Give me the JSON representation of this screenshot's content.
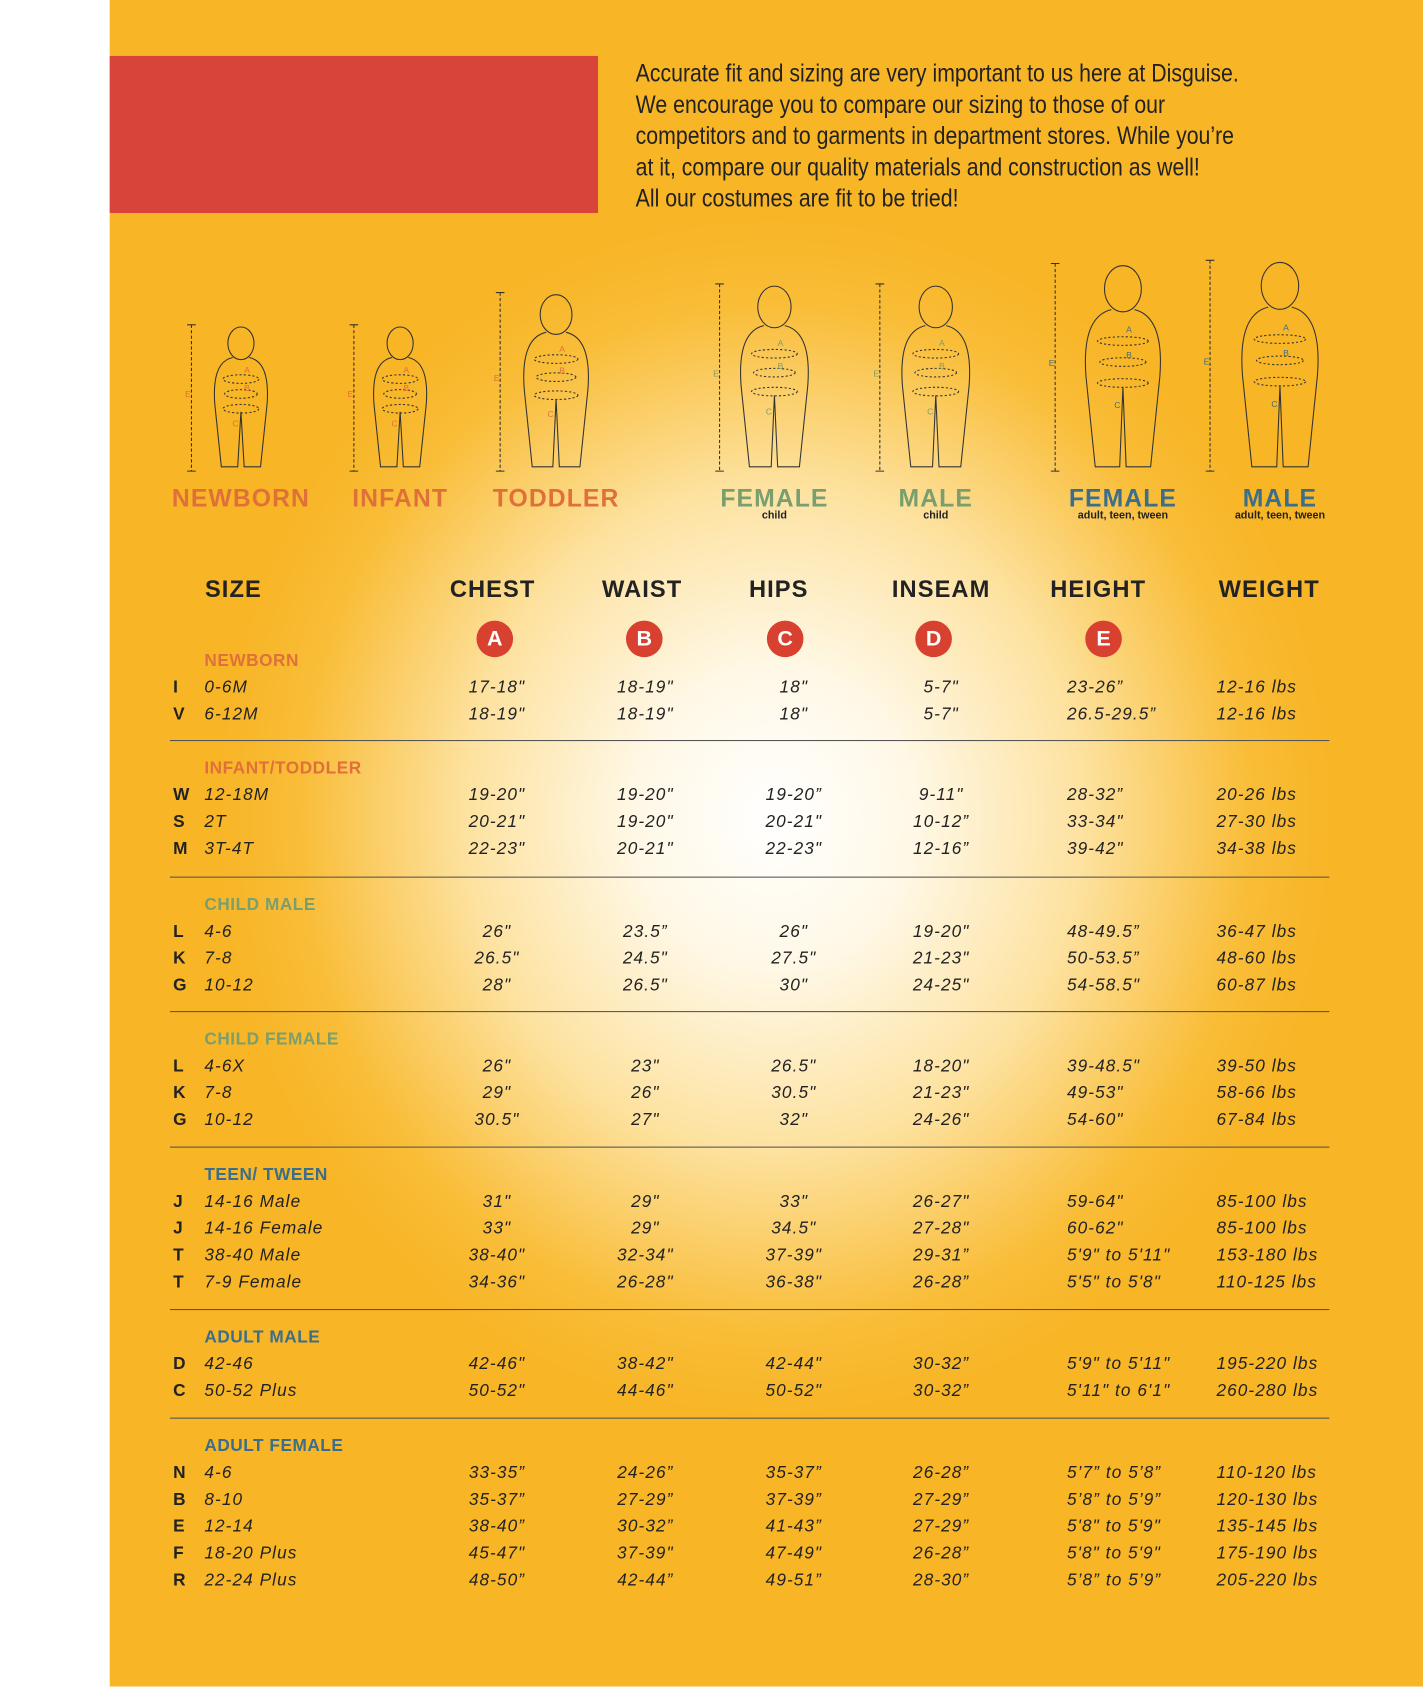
{
  "intro": "Accurate fit and sizing are very important to us here at Disguise.\nWe encourage you to compare our sizing to those of our\ncompetitors and to garments in department stores. While you’re\nat it, compare our quality materials and construction as well!\nAll our costumes are fit to be tried!",
  "colors": {
    "background": "#f8b526",
    "red_block": "#d8433a",
    "orange": "#e0703a",
    "green": "#7a9e6e",
    "blue": "#3a6e8a",
    "marker": "#d84030"
  },
  "figures": [
    {
      "label": "NEWBORN",
      "sub": "",
      "color": "orange"
    },
    {
      "label": "INFANT",
      "sub": "",
      "color": "orange"
    },
    {
      "label": "TODDLER",
      "sub": "",
      "color": "orange"
    },
    {
      "label": "FEMALE",
      "sub": "child",
      "color": "green"
    },
    {
      "label": "MALE",
      "sub": "child",
      "color": "green"
    },
    {
      "label": "FEMALE",
      "sub": "adult, teen, tween",
      "color": "blue"
    },
    {
      "label": "MALE",
      "sub": "adult, teen, tween",
      "color": "blue"
    }
  ],
  "headers": [
    "SIZE",
    "CHEST",
    "WAIST",
    "HIPS",
    "INSEAM",
    "HEIGHT",
    "WEIGHT"
  ],
  "markers": [
    "A",
    "B",
    "C",
    "D",
    "E"
  ],
  "sections": [
    {
      "title": "NEWBORN",
      "color": "orange",
      "rows": [
        [
          "I",
          "0-6M",
          "17-18\"",
          "18-19\"",
          "18\"",
          "5-7\"",
          "23-26”",
          "12-16 lbs"
        ],
        [
          "V",
          "6-12M",
          "18-19\"",
          "18-19\"",
          "18\"",
          "5-7\"",
          "26.5-29.5”",
          "12-16 lbs"
        ]
      ]
    },
    {
      "title": "INFANT/TODDLER",
      "color": "orange",
      "rows": [
        [
          "W",
          "12-18M",
          "19-20\"",
          "19-20\"",
          "19-20”",
          "9-11\"",
          "28-32”",
          "20-26 lbs"
        ],
        [
          "S",
          "2T",
          "20-21\"",
          "19-20\"",
          "20-21\"",
          "10-12”",
          "33-34\"",
          "27-30 lbs"
        ],
        [
          "M",
          "3T-4T",
          "22-23\"",
          "20-21\"",
          "22-23\"",
          "12-16”",
          "39-42\"",
          "34-38 lbs"
        ]
      ]
    },
    {
      "title": "CHILD MALE",
      "color": "green",
      "rows": [
        [
          "L",
          "4-6",
          "26\"",
          "23.5”",
          "26\"",
          "19-20\"",
          "48-49.5”",
          "36-47 lbs"
        ],
        [
          "K",
          "7-8",
          "26.5\"",
          "24.5\"",
          "27.5\"",
          "21-23\"",
          "50-53.5”",
          "48-60 lbs"
        ],
        [
          "G",
          "10-12",
          "28\"",
          "26.5\"",
          "30\"",
          "24-25\"",
          "54-58.5\"",
          "60-87 lbs"
        ]
      ]
    },
    {
      "title": "CHILD FEMALE",
      "color": "green",
      "rows": [
        [
          "L",
          "4-6X",
          "26\"",
          "23\"",
          "26.5\"",
          "18-20\"",
          "39-48.5\"",
          "39-50 lbs"
        ],
        [
          "K",
          "7-8",
          "29\"",
          "26\"",
          "30.5\"",
          "21-23\"",
          "49-53\"",
          "58-66 lbs"
        ],
        [
          "G",
          "10-12",
          "30.5\"",
          "27\"",
          "32\"",
          "24-26\"",
          "54-60\"",
          "67-84 lbs"
        ]
      ]
    },
    {
      "title": "TEEN/ TWEEN",
      "color": "blue",
      "rows": [
        [
          "J",
          "14-16 Male",
          "31\"",
          "29\"",
          "33\"",
          "26-27\"",
          "59-64\"",
          "85-100 lbs"
        ],
        [
          "J",
          "14-16 Female",
          "33\"",
          "29\"",
          "34.5\"",
          "27-28\"",
          "60-62\"",
          "85-100 lbs"
        ],
        [
          "T",
          "38-40 Male",
          "38-40\"",
          "32-34\"",
          "37-39\"",
          "29-31”",
          "5'9\" to 5'11\"",
          "153-180 lbs"
        ],
        [
          "T",
          "7-9 Female",
          "34-36\"",
          "26-28\"",
          "36-38\"",
          "26-28”",
          "5'5\" to 5'8\"",
          "110-125 lbs"
        ]
      ]
    },
    {
      "title": "ADULT MALE",
      "color": "blue",
      "rows": [
        [
          "D",
          "42-46",
          "42-46\"",
          "38-42\"",
          "42-44\"",
          "30-32”",
          "5'9\" to 5'11\"",
          "195-220 lbs"
        ],
        [
          "C",
          "50-52 Plus",
          "50-52\"",
          "44-46\"",
          "50-52\"",
          "30-32”",
          "5'11\" to 6'1\"",
          "260-280 lbs"
        ]
      ]
    },
    {
      "title": "ADULT FEMALE",
      "color": "blue",
      "rows": [
        [
          "N",
          "4-6",
          "33-35”",
          "24-26”",
          "35-37”",
          "26-28”",
          "5’7” to 5’8”",
          "110-120 lbs"
        ],
        [
          "B",
          "8-10",
          "35-37”",
          "27-29”",
          "37-39”",
          "27-29”",
          "5’8” to 5’9”",
          "120-130 lbs"
        ],
        [
          "E",
          "12-14",
          "38-40”",
          "30-32”",
          "41-43”",
          "27-29”",
          "5'8\" to 5'9\"",
          "135-145 lbs"
        ],
        [
          "F",
          "18-20 Plus",
          "45-47\"",
          "37-39\"",
          "47-49\"",
          "26-28”",
          "5'8\" to 5'9\"",
          "175-190 lbs"
        ],
        [
          "R",
          "22-24 Plus",
          "48-50”",
          "42-44”",
          "49-51”",
          "28-30”",
          "5’8” to 5’9”",
          "205-220 lbs"
        ]
      ]
    }
  ]
}
